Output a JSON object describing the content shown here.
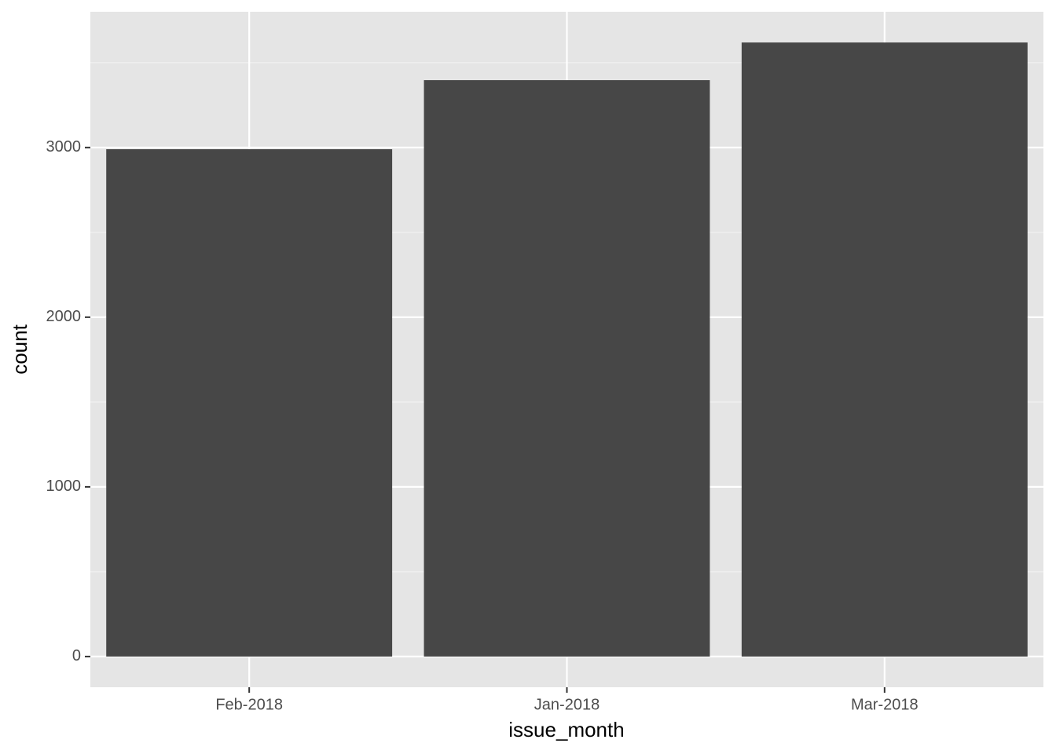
{
  "chart_data": {
    "type": "bar",
    "xlabel": "issue_month",
    "ylabel": "count",
    "categories": [
      "Feb-2018",
      "Jan-2018",
      "Mar-2018"
    ],
    "values": [
      2990,
      3397,
      3619
    ],
    "color": "#474747",
    "ylim": [
      -181,
      3800
    ],
    "yticks": [
      0,
      1000,
      2000,
      3000
    ],
    "y_minor_ticks": [
      500,
      1500,
      2500,
      3500
    ],
    "grid": true
  }
}
